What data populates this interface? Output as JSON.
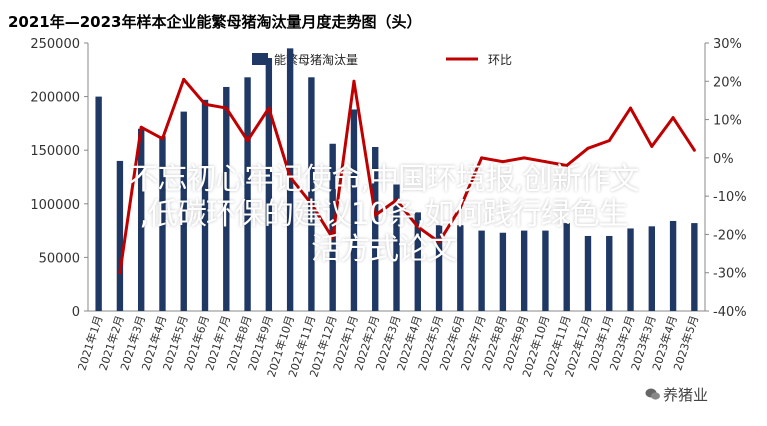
{
  "chart_data": {
    "type": "bar+line",
    "title": "2021年—2023年样本企业能繁母猪淘汰量月度走势图（头）",
    "legend": [
      {
        "name": "能繁母猪淘汰量",
        "color": "#1f3864",
        "kind": "bar"
      },
      {
        "name": "环比",
        "color": "#c00000",
        "kind": "line"
      }
    ],
    "categories": [
      "2021年1月",
      "2021年2月",
      "2021年3月",
      "2021年4月",
      "2021年5月",
      "2021年6月",
      "2021年7月",
      "2021年8月",
      "2021年9月",
      "2021年10月",
      "2021年11月",
      "2021年12月",
      "2022年1月",
      "2022年2月",
      "2022年3月",
      "2022年4月",
      "2022年5月",
      "2022年6月",
      "2022年7月",
      "2022年8月",
      "2022年9月",
      "2022年10月",
      "2022年11月",
      "2022年12月",
      "2023年1月",
      "2023年2月",
      "2023年3月",
      "2023年4月",
      "2023年5月"
    ],
    "series": [
      {
        "name": "能繁母猪淘汰量",
        "axis": "left",
        "values": [
          200000,
          140000,
          170000,
          163000,
          186000,
          197000,
          209000,
          218000,
          236000,
          245000,
          218000,
          156000,
          188000,
          153000,
          118000,
          92000,
          80000,
          80000,
          75000,
          73000,
          75000,
          75000,
          82000,
          70000,
          70000,
          77000,
          79000,
          84000,
          82000
        ]
      },
      {
        "name": "环比",
        "axis": "right",
        "values": [
          null,
          -30,
          8,
          5,
          20.5,
          14,
          13,
          4.5,
          13,
          -5,
          -12,
          -21,
          20,
          -15,
          -11,
          -18,
          -22,
          -13,
          0,
          -1,
          0,
          -1,
          -2,
          2.5,
          4.5,
          13,
          3,
          10.5,
          2
        ]
      }
    ],
    "y_left": {
      "min": 0,
      "max": 250000,
      "ticks": [
        "0",
        "50000",
        "100000",
        "150000",
        "200000",
        "250000"
      ]
    },
    "y_right": {
      "min": -40,
      "max": 30,
      "ticks": [
        "-40%",
        "-30%",
        "-20%",
        "-10%",
        "0%",
        "10%",
        "20%",
        "30%"
      ]
    },
    "legend_position": "top-center",
    "grid": false
  },
  "overlay_text": {
    "line1": "不忘初心牢记使命,中国环境报,创新作文",
    "line2": ",低碳环保的建议10条,如何践行绿色生",
    "line3": "活方式论文"
  },
  "watermark": {
    "label": "养猪业"
  }
}
